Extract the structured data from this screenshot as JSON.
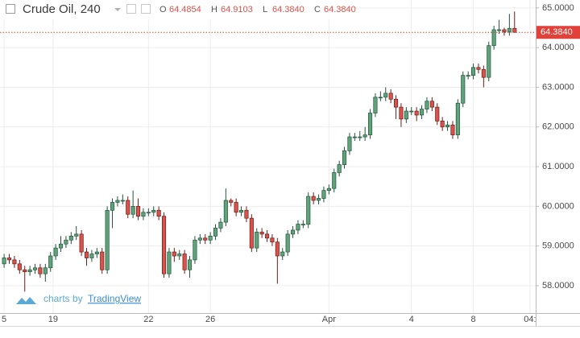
{
  "chart_data": {
    "type": "candlestick",
    "title": "Crude Oil, 240",
    "ohlc": [
      {
        "label": "O",
        "text": "64.4854"
      },
      {
        "label": "H",
        "text": "64.9103"
      },
      {
        "label": "L",
        "text": "64.3840"
      },
      {
        "label": "C",
        "text": "64.3840"
      }
    ],
    "watermark": "charts by",
    "watermark_link": "TradingView",
    "up_color": "#5fa37a",
    "up_border": "#23543a",
    "down_color": "#d9524b",
    "down_border": "#6b1d16",
    "price_line_color": "#e0413a",
    "last_label": "64.3840",
    "last_value": 64.384,
    "grid": true,
    "ylim": [
      57.31,
      65.2
    ],
    "yticks": [
      {
        "value": 58,
        "label": "58.0000"
      },
      {
        "value": 59,
        "label": "59.0000"
      },
      {
        "value": 60,
        "label": "60.0000"
      },
      {
        "value": 61,
        "label": "61.0000"
      },
      {
        "value": 62,
        "label": "62.0000"
      },
      {
        "value": 63,
        "label": "63.0000"
      },
      {
        "value": 64,
        "label": "64.0000"
      },
      {
        "value": 65,
        "label": "65.0000"
      }
    ],
    "xlim": [
      -0.8,
      103.1
    ],
    "xticks": [
      {
        "value": 0,
        "label": "5"
      },
      {
        "value": 9.5,
        "label": "19"
      },
      {
        "value": 28,
        "label": "22"
      },
      {
        "value": 40,
        "label": "26"
      },
      {
        "value": 63,
        "label": "Apr"
      },
      {
        "value": 79,
        "label": "4"
      },
      {
        "value": 91,
        "label": "8"
      },
      {
        "value": 102,
        "label": "04:"
      }
    ],
    "open": [
      58.55,
      58.7,
      58.65,
      58.55,
      58.4,
      58.35,
      58.4,
      58.45,
      58.3,
      58.45,
      58.75,
      58.95,
      59.05,
      59.15,
      59.25,
      59.3,
      58.85,
      58.7,
      58.8,
      58.85,
      58.4,
      59.9,
      60.1,
      60.15,
      60.15,
      59.8,
      60.0,
      59.75,
      59.85,
      59.85,
      59.9,
      59.75,
      58.3,
      58.85,
      58.75,
      58.8,
      58.4,
      58.65,
      59.15,
      59.2,
      59.15,
      59.25,
      59.45,
      59.6,
      60.15,
      60.1,
      59.85,
      59.9,
      59.7,
      58.95,
      59.35,
      59.3,
      59.2,
      59.1,
      58.75,
      58.85,
      59.3,
      59.4,
      59.55,
      59.55,
      60.25,
      60.15,
      60.2,
      60.4,
      60.45,
      60.85,
      61.05,
      61.4,
      61.75,
      61.75,
      61.75,
      61.8,
      62.35,
      62.75,
      62.75,
      62.85,
      62.7,
      62.5,
      62.2,
      62.4,
      62.4,
      62.3,
      62.45,
      62.65,
      62.5,
      62.15,
      62.0,
      62.05,
      61.8,
      62.6,
      63.3,
      63.3,
      63.5,
      63.45,
      63.25,
      64.05,
      64.45,
      64.45,
      64.4,
      64.4854
    ],
    "high": [
      58.8,
      58.8,
      58.75,
      58.65,
      58.5,
      58.5,
      58.55,
      58.55,
      58.55,
      58.85,
      59.05,
      59.25,
      59.25,
      59.35,
      59.5,
      59.4,
      58.95,
      58.9,
      58.95,
      58.95,
      60.0,
      60.2,
      60.25,
      60.3,
      60.25,
      60.4,
      60.2,
      59.95,
      59.95,
      60.0,
      60.0,
      59.85,
      58.95,
      58.95,
      58.9,
      58.9,
      58.75,
      59.25,
      59.3,
      59.3,
      59.35,
      59.55,
      59.7,
      60.45,
      60.2,
      60.2,
      60.0,
      60.0,
      59.8,
      59.45,
      59.45,
      59.4,
      59.3,
      59.2,
      58.95,
      59.4,
      59.5,
      59.65,
      59.65,
      60.35,
      60.35,
      60.3,
      60.5,
      60.55,
      60.95,
      61.15,
      61.5,
      61.85,
      61.85,
      61.9,
      62.0,
      62.45,
      62.85,
      62.9,
      63.0,
      62.95,
      62.8,
      62.6,
      62.5,
      62.5,
      62.5,
      62.55,
      62.75,
      62.75,
      62.6,
      62.25,
      62.15,
      62.15,
      62.7,
      63.4,
      63.4,
      63.6,
      63.6,
      63.55,
      64.15,
      64.55,
      64.7,
      64.5,
      64.85,
      64.9103
    ],
    "low": [
      58.45,
      58.55,
      58.45,
      58.3,
      57.85,
      58.25,
      58.3,
      58.2,
      58.1,
      58.35,
      58.65,
      58.85,
      58.95,
      59.05,
      59.15,
      58.75,
      58.5,
      58.6,
      58.7,
      58.3,
      58.3,
      59.45,
      60.0,
      60.05,
      59.7,
      59.7,
      59.65,
      59.65,
      59.75,
      59.75,
      59.65,
      58.2,
      58.2,
      58.6,
      58.65,
      58.3,
      58.2,
      58.55,
      59.05,
      59.05,
      59.05,
      59.15,
      59.35,
      59.5,
      60.0,
      59.75,
      59.75,
      59.6,
      58.85,
      58.85,
      59.2,
      59.1,
      59.0,
      58.05,
      58.65,
      58.75,
      59.2,
      59.3,
      59.45,
      59.45,
      60.05,
      60.05,
      60.1,
      60.3,
      60.35,
      60.75,
      60.95,
      61.3,
      61.65,
      61.65,
      61.65,
      61.7,
      62.25,
      62.65,
      62.65,
      62.6,
      62.2,
      62.0,
      62.1,
      62.3,
      62.15,
      62.2,
      62.35,
      62.4,
      62.05,
      61.9,
      61.9,
      61.7,
      61.7,
      62.5,
      63.2,
      63.2,
      63.35,
      63.0,
      63.15,
      63.95,
      64.35,
      64.3,
      64.3,
      64.384
    ],
    "close": [
      58.7,
      58.65,
      58.55,
      58.4,
      58.35,
      58.4,
      58.45,
      58.3,
      58.45,
      58.75,
      58.95,
      59.05,
      59.15,
      59.25,
      59.3,
      58.85,
      58.7,
      58.8,
      58.85,
      58.4,
      59.9,
      60.1,
      60.15,
      60.15,
      59.8,
      60.0,
      59.75,
      59.85,
      59.85,
      59.9,
      59.75,
      58.3,
      58.85,
      58.75,
      58.8,
      58.4,
      58.65,
      59.15,
      59.2,
      59.15,
      59.25,
      59.45,
      59.6,
      60.15,
      60.1,
      59.85,
      59.9,
      59.7,
      58.95,
      59.35,
      59.3,
      59.2,
      59.1,
      58.75,
      58.85,
      59.3,
      59.4,
      59.55,
      59.55,
      60.25,
      60.15,
      60.2,
      60.4,
      60.45,
      60.85,
      61.05,
      61.4,
      61.75,
      61.75,
      61.75,
      61.8,
      62.35,
      62.75,
      62.75,
      62.85,
      62.7,
      62.5,
      62.2,
      62.4,
      62.4,
      62.3,
      62.45,
      62.65,
      62.5,
      62.15,
      62.0,
      62.05,
      61.8,
      62.6,
      63.3,
      63.3,
      63.5,
      63.45,
      63.25,
      64.05,
      64.45,
      64.45,
      64.4,
      64.4854,
      64.384
    ]
  }
}
